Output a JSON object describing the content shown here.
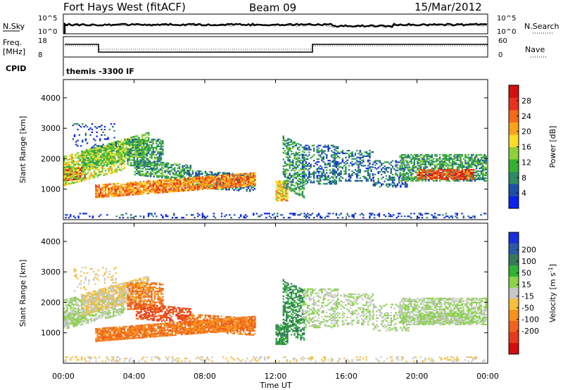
{
  "header": {
    "station": "Fort Hays West (fitACF)",
    "beam": "Beam 09",
    "date": "15/Mar/2012"
  },
  "status_panels": {
    "left_top": "N.Sky",
    "left_top_ticks": [
      "10^5",
      "10^0"
    ],
    "right_top": "N.Search",
    "right_top_ticks": [
      "10^5",
      "10^0"
    ],
    "left_mid": "Freq.",
    "left_mid_unit": "[MHz]",
    "left_mid_ticks": [
      "18",
      "8"
    ],
    "right_mid": "Nave",
    "right_mid_ticks": [
      "60",
      "0"
    ],
    "cpid_label": "CPID",
    "cpid_value": "themis -3300 IF"
  },
  "colors": {
    "power": [
      "#0a22f0",
      "#1c4fa8",
      "#2f8a66",
      "#33b230",
      "#8ed13a",
      "#ffdc24",
      "#f9a21b",
      "#f36a1a",
      "#e9301c",
      "#d40f0f"
    ],
    "velocity": [
      "#1a2fdc",
      "#2a5aa2",
      "#357a58",
      "#2eb433",
      "#8ad34a",
      "#c8c8c8",
      "#f9be3a",
      "#f6921e",
      "#f0621d",
      "#e53a1b",
      "#d70c0c"
    ]
  },
  "chart_data": [
    {
      "type": "heatmap",
      "name": "power",
      "ylabel": "Slant Range [km]",
      "yticks": [
        "1000",
        "2000",
        "3000",
        "4000"
      ],
      "ytick_values": [
        1000,
        2000,
        3000,
        4000
      ],
      "ylim": [
        0,
        4600
      ],
      "xlim": [
        0,
        24
      ],
      "colorbar_label": "Power [dB]",
      "colorbar_ticks": [
        "4",
        "8",
        "12",
        "16",
        "20",
        "24",
        "28"
      ],
      "colorbar_values": [
        4,
        8,
        12,
        16,
        20,
        24,
        28
      ],
      "colorbar_range": [
        0,
        32
      ]
    },
    {
      "type": "heatmap",
      "name": "velocity",
      "ylabel": "Slant Range [km]",
      "yticks": [
        "1000",
        "2000",
        "3000",
        "4000"
      ],
      "ytick_values": [
        1000,
        2000,
        3000,
        4000
      ],
      "ylim": [
        0,
        4600
      ],
      "xlim": [
        0,
        24
      ],
      "colorbar_label": "Velocity [m s",
      "colorbar_label_sup": "-1",
      "colorbar_label_end": "]",
      "colorbar_ticks": [
        "200",
        "100",
        "50",
        "15",
        "-15",
        "-50",
        "-100",
        "-200"
      ]
    }
  ],
  "xaxis": {
    "label": "Time UT",
    "ticks": [
      "00:00",
      "04:00",
      "08:00",
      "12:00",
      "16:00",
      "20:00",
      "00:00"
    ],
    "tick_hours": [
      0,
      4,
      8,
      12,
      16,
      20,
      24
    ]
  }
}
